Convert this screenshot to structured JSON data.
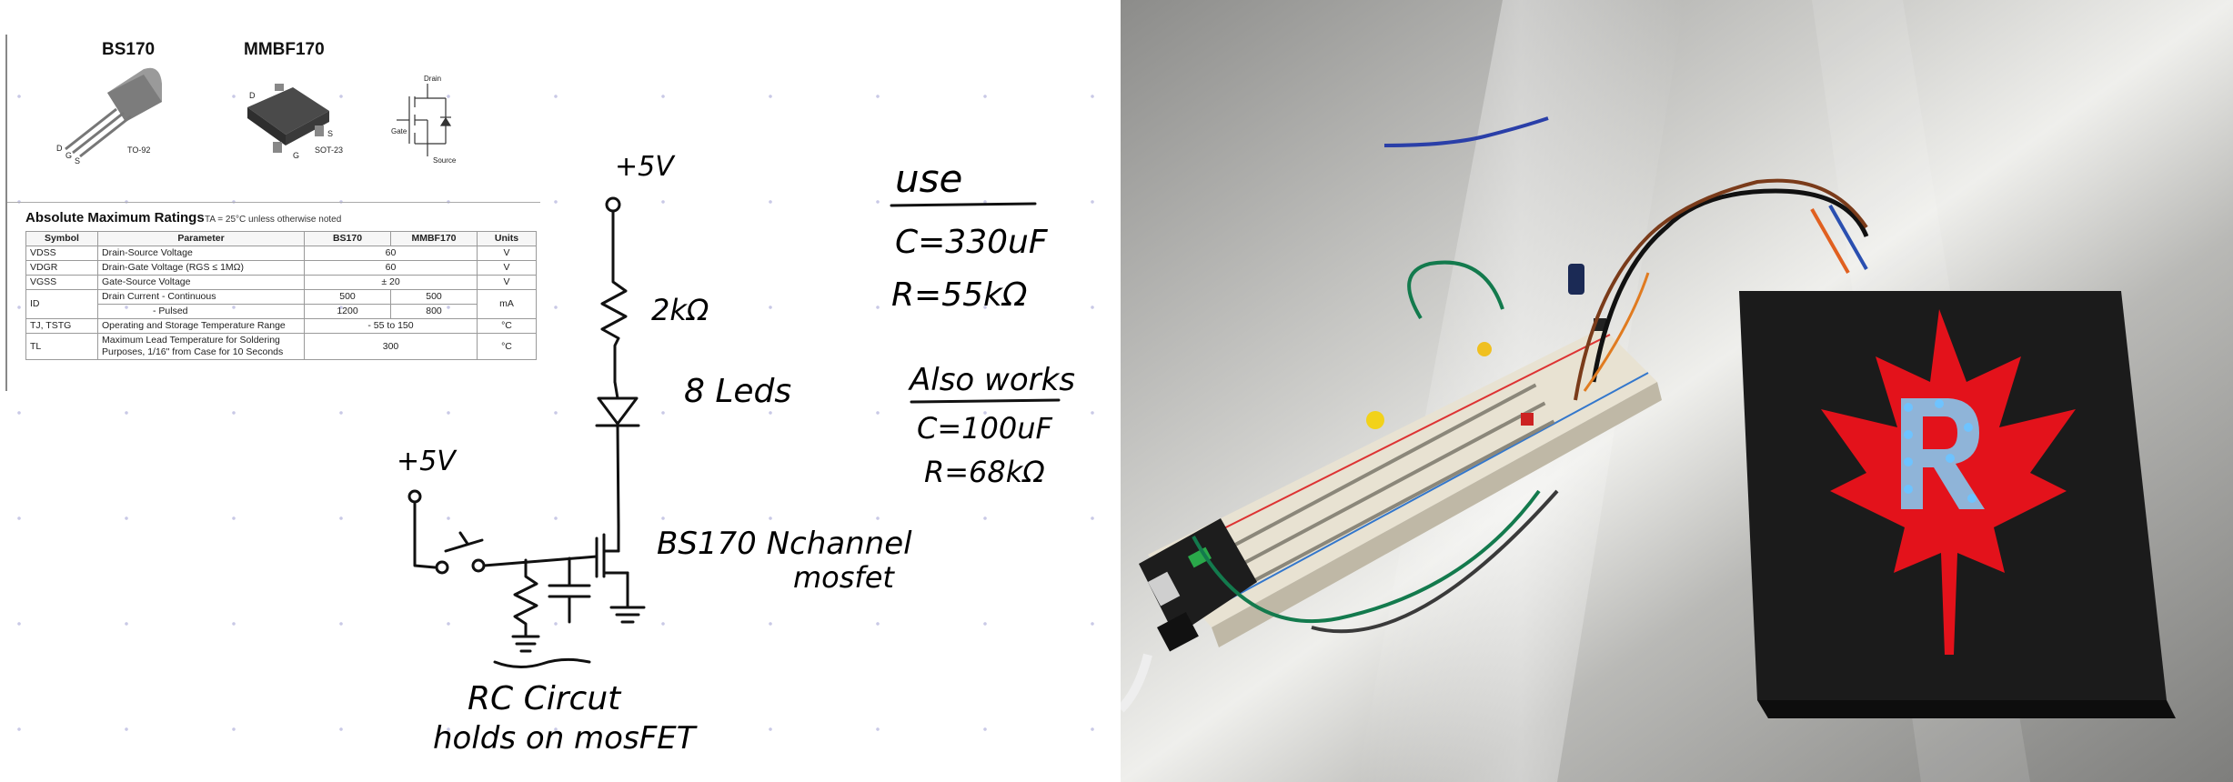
{
  "datasheet": {
    "package1_name": "BS170",
    "package1_type": "TO-92",
    "package2_name": "MMBF170",
    "package2_type": "SOT-23",
    "pin_d": "D",
    "pin_g": "G",
    "pin_s": "S",
    "symbol_drain": "Drain",
    "symbol_gate": "Gate",
    "symbol_source": "Source",
    "table_title": "Absolute Maximum Ratings",
    "table_condition": "TA = 25°C unless otherwise noted",
    "headers": [
      "Symbol",
      "Parameter",
      "BS170",
      "MMBF170",
      "Units"
    ],
    "rows": [
      {
        "symbol": "VDSS",
        "param": "Drain-Source Voltage",
        "bs170": "60",
        "mmbf170": "",
        "units": "V"
      },
      {
        "symbol": "VDGR",
        "param": "Drain-Gate Voltage (RGS ≤ 1MΩ)",
        "bs170": "60",
        "mmbf170": "",
        "units": "V"
      },
      {
        "symbol": "VGSS",
        "param": "Gate-Source Voltage",
        "bs170": "± 20",
        "mmbf170": "",
        "units": "V"
      },
      {
        "symbol": "ID",
        "param": "Drain Current - Continuous",
        "bs170": "500",
        "mmbf170": "500",
        "units": "mA"
      },
      {
        "symbol": "",
        "param": "- Pulsed",
        "bs170": "1200",
        "mmbf170": "800",
        "units": ""
      },
      {
        "symbol": "TJ, TSTG",
        "param": "Operating and Storage Temperature Range",
        "bs170": "- 55 to 150",
        "mmbf170": "",
        "units": "°C"
      },
      {
        "symbol": "TL",
        "param": "Maximum Lead Temperature for Soldering Purposes, 1/16\" from Case for 10 Seconds",
        "bs170": "300",
        "mmbf170": "",
        "units": "°C"
      }
    ]
  },
  "schematic": {
    "supply_top": "+5V",
    "resistor_label": "2kΩ",
    "led_label": "8 Leds",
    "supply_left": "+5V",
    "mosfet_label_1": "BS170 Nchannel",
    "mosfet_label_2": "mosfet",
    "rc_label_1": "RC Circut",
    "rc_label_2": "holds on mosFET"
  },
  "notes": {
    "use_heading": "use",
    "use_c": "C=330uF",
    "use_r": "R=55kΩ",
    "also_heading": "Also works",
    "also_c": "C=100uF",
    "also_r": "R=68kΩ"
  },
  "colors": {
    "maple_leaf": "#e3121b",
    "board": "#1b1b1b",
    "led_blue": "#6ec3ff",
    "letter_fill": "#8fb4d8"
  }
}
